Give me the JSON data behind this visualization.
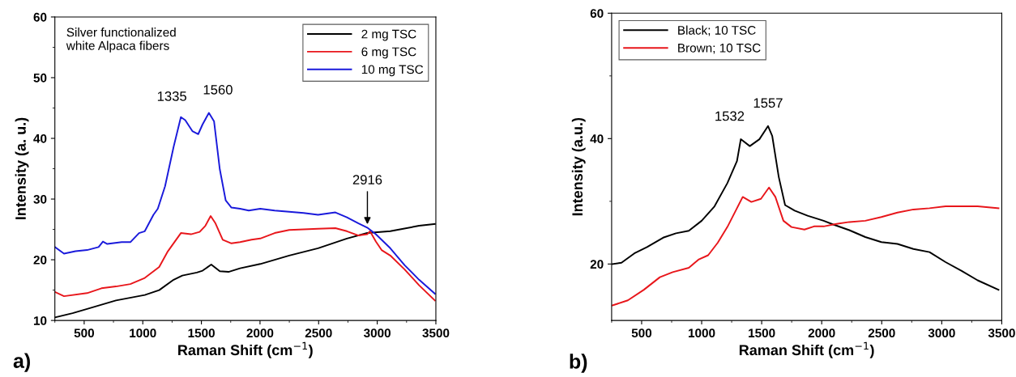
{
  "chart_data": [
    {
      "type": "line",
      "xlabel": "Raman Shift (cm$^{−1}$)",
      "ylabel": "Intensity (a. u.)",
      "xlim": [
        250,
        3500
      ],
      "xticks": [
        500,
        1000,
        1500,
        2000,
        2500,
        3000,
        3500
      ],
      "ylim": [
        10,
        60
      ],
      "yticks": [
        10,
        20,
        30,
        40,
        50,
        60
      ],
      "legend": "top right",
      "grid": false,
      "annotations": [
        "Silver functionalized\nwhite Alpaca fibers",
        "a)",
        {
          "text": "1335",
          "x": 1325,
          "y": 43.5
        },
        {
          "text": "1560",
          "x": 1564,
          "y": 44.2
        },
        {
          "text": "2916",
          "x": 2916,
          "y": 25.3
        }
      ],
      "series": [
        {
          "name": "2 mg TSC",
          "color": "#000000",
          "x": [
            250,
            401,
            525,
            771,
            1017,
            1140,
            1263,
            1337,
            1461,
            1510,
            1584,
            1657,
            1731,
            1830,
            2002,
            2249,
            2495,
            2741,
            2914,
            3111,
            3357,
            3492
          ],
          "values": [
            10.5,
            11.2,
            11.9,
            13.3,
            14.2,
            15.0,
            16.7,
            17.4,
            17.9,
            18.2,
            19.2,
            18.1,
            18.0,
            18.6,
            19.3,
            20.7,
            21.9,
            23.5,
            24.4,
            24.7,
            25.6,
            25.9
          ]
        },
        {
          "name": "6 mg TSC",
          "color": "#e8161b",
          "x": [
            250,
            328,
            525,
            648,
            771,
            894,
            1017,
            1140,
            1214,
            1325,
            1411,
            1485,
            1534,
            1579,
            1620,
            1682,
            1756,
            1830,
            1928,
            2002,
            2125,
            2249,
            2495,
            2643,
            2741,
            2840,
            2914,
            2938,
            2988,
            3037,
            3111,
            3234,
            3357,
            3492
          ],
          "values": [
            14.7,
            14.0,
            14.5,
            15.3,
            15.6,
            16.0,
            17.0,
            18.8,
            21.4,
            24.4,
            24.2,
            24.6,
            25.6,
            27.2,
            26.0,
            23.3,
            22.7,
            22.9,
            23.3,
            23.5,
            24.4,
            24.9,
            25.1,
            25.2,
            24.7,
            24.0,
            24.2,
            24.7,
            23.0,
            21.6,
            20.7,
            18.4,
            15.8,
            13.3
          ]
        },
        {
          "name": "10 mg TSC",
          "color": "#1a1adb",
          "x": [
            250,
            328,
            426,
            525,
            623,
            660,
            697,
            820,
            894,
            968,
            1017,
            1091,
            1128,
            1190,
            1263,
            1325,
            1362,
            1423,
            1473,
            1510,
            1564,
            1608,
            1657,
            1707,
            1756,
            1830,
            1904,
            2002,
            2125,
            2249,
            2372,
            2495,
            2643,
            2741,
            2840,
            2914,
            2988,
            3111,
            3234,
            3357,
            3492
          ],
          "values": [
            22.1,
            21.0,
            21.4,
            21.6,
            22.1,
            23.0,
            22.6,
            22.9,
            22.9,
            24.4,
            24.7,
            27.4,
            28.4,
            32.1,
            38.6,
            43.5,
            43.0,
            41.2,
            40.7,
            42.3,
            44.2,
            42.8,
            34.9,
            29.8,
            28.6,
            28.4,
            28.1,
            28.4,
            28.1,
            27.9,
            27.7,
            27.4,
            27.8,
            27.0,
            26.0,
            25.3,
            24.2,
            21.9,
            19.1,
            16.7,
            14.4
          ]
        }
      ]
    },
    {
      "type": "line",
      "xlabel": "Raman Shift (cm$^{−1}$)",
      "ylabel": "Intensity (a.u.)",
      "xlim": [
        250,
        3500
      ],
      "xticks": [
        500,
        1000,
        1500,
        2000,
        2500,
        3000,
        3500
      ],
      "ylim": [
        11,
        60
      ],
      "yticks": [
        20,
        40,
        60
      ],
      "legend": "top left",
      "grid": false,
      "annotations": [
        "b)",
        {
          "text": "1532",
          "x": 1326,
          "y": 39.9
        },
        {
          "text": "1557",
          "x": 1553,
          "y": 42.0
        }
      ],
      "series": [
        {
          "name": "Black; 10 TSC",
          "color": "#000000",
          "x": [
            257,
            332,
            439,
            545,
            679,
            786,
            893,
            1000,
            1107,
            1214,
            1294,
            1326,
            1401,
            1481,
            1553,
            1588,
            1642,
            1695,
            1775,
            1882,
            2016,
            2096,
            2230,
            2363,
            2497,
            2631,
            2764,
            2898,
            3032,
            3166,
            3299,
            3473
          ],
          "values": [
            20.0,
            20.2,
            21.7,
            22.7,
            24.2,
            24.9,
            25.3,
            26.9,
            29.2,
            32.9,
            36.4,
            39.9,
            38.8,
            39.9,
            42.0,
            40.4,
            33.9,
            29.4,
            28.5,
            27.7,
            26.9,
            26.3,
            25.4,
            24.3,
            23.5,
            23.2,
            22.4,
            21.9,
            20.3,
            18.9,
            17.4,
            15.9
          ]
        },
        {
          "name": "Brown; 10 TSC",
          "color": "#e8161b",
          "x": [
            257,
            385,
            519,
            652,
            759,
            893,
            973,
            1054,
            1134,
            1214,
            1294,
            1342,
            1414,
            1494,
            1561,
            1614,
            1681,
            1748,
            1856,
            1936,
            2016,
            2123,
            2230,
            2363,
            2497,
            2631,
            2764,
            2898,
            3032,
            3166,
            3299,
            3473
          ],
          "values": [
            13.4,
            14.2,
            15.9,
            17.9,
            18.7,
            19.4,
            20.7,
            21.4,
            23.4,
            25.9,
            28.9,
            30.7,
            29.9,
            30.4,
            32.2,
            30.7,
            26.9,
            25.9,
            25.5,
            26.0,
            26.0,
            26.4,
            26.7,
            26.9,
            27.5,
            28.2,
            28.7,
            28.9,
            29.2,
            29.2,
            29.2,
            28.9
          ]
        }
      ]
    }
  ]
}
